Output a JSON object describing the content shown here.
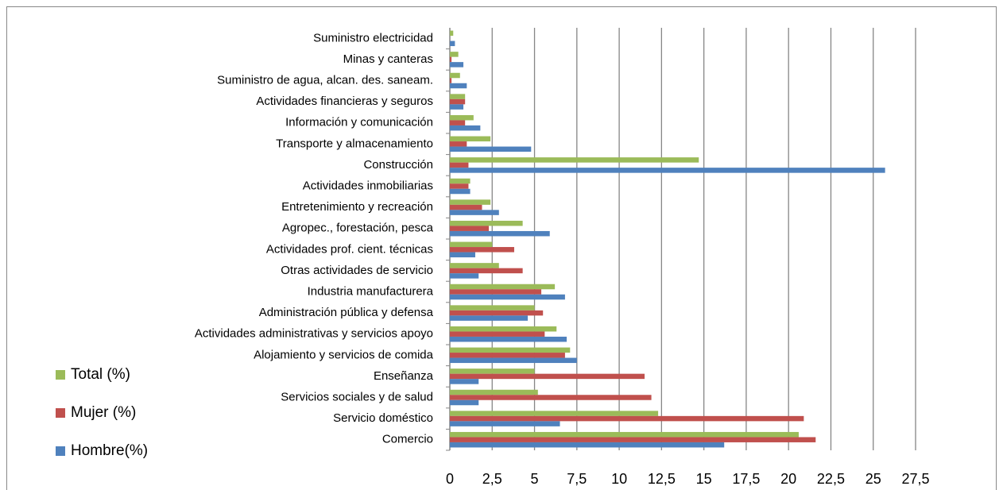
{
  "chart_data": {
    "type": "bar",
    "orientation": "horizontal",
    "categories": [
      "Comercio",
      "Servicio doméstico",
      "Servicios sociales y de salud",
      "Enseñanza",
      "Alojamiento y servicios de comida",
      "Actividades administrativas y servicios apoyo",
      "Administración pública y defensa",
      "Industria manufacturera",
      "Otras actividades de servicio",
      "Actividades prof. cient. técnicas",
      "Agropec., forestación, pesca",
      "Entretenimiento y recreación",
      "Actividades inmobiliarias",
      "Construcción",
      "Transporte y almacenamiento",
      "Información y comunicación",
      "Actividades financieras y seguros",
      "Suministro de agua, alcan. des. saneam.",
      "Minas y canteras",
      "Suministro electricidad"
    ],
    "series": [
      {
        "name": "Total (%)",
        "color": "#9bbb59",
        "values": [
          20.6,
          12.3,
          5.2,
          5.0,
          7.1,
          6.3,
          5.0,
          6.2,
          2.9,
          2.5,
          4.3,
          2.4,
          1.2,
          14.7,
          2.4,
          1.4,
          0.9,
          0.6,
          0.5,
          0.2
        ]
      },
      {
        "name": "Mujer (%)",
        "color": "#c0504d",
        "values": [
          21.6,
          20.9,
          11.9,
          11.5,
          6.8,
          5.6,
          5.5,
          5.4,
          4.3,
          3.8,
          2.3,
          1.9,
          1.1,
          1.1,
          1.0,
          0.9,
          0.9,
          0.1,
          0.1,
          0
        ]
      },
      {
        "name": "Hombre(%)",
        "color": "#4f81bd",
        "values": [
          16.2,
          6.5,
          1.7,
          1.7,
          7.5,
          6.9,
          4.6,
          6.8,
          1.7,
          1.5,
          5.9,
          2.9,
          1.2,
          25.7,
          4.8,
          1.8,
          0.8,
          1.0,
          0.8,
          0.3
        ]
      }
    ],
    "xlim": [
      0,
      27.5
    ],
    "xticks": [
      0,
      {
        "value": 2.5,
        "label": "2,5"
      },
      5,
      {
        "value": 7.5,
        "label": "7,5"
      },
      10,
      {
        "value": 12.5,
        "label": "12,5"
      },
      15,
      {
        "value": 17.5,
        "label": "17,5"
      },
      20,
      {
        "value": 22.5,
        "label": "22,5"
      },
      25,
      {
        "value": 27.5,
        "label": "27,5"
      }
    ],
    "grid": true,
    "legend": "left"
  }
}
